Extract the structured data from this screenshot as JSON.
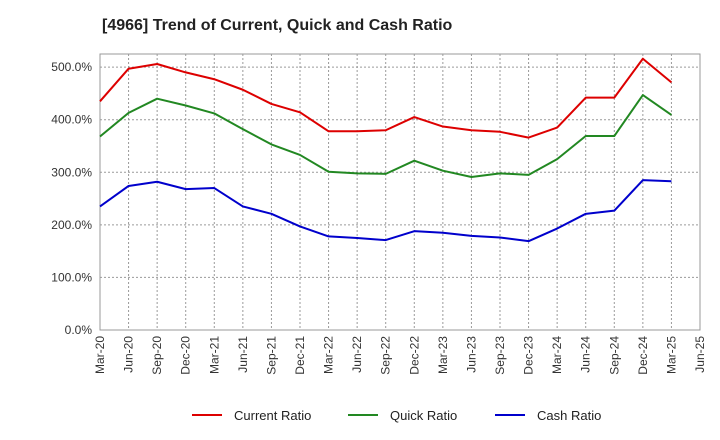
{
  "chart_data": {
    "type": "line",
    "title": "[4966]  Trend of Current, Quick and Cash Ratio",
    "xlabel": "",
    "ylabel": "",
    "ylim": [
      0,
      525
    ],
    "y_ticks": [
      0,
      100,
      200,
      300,
      400,
      500
    ],
    "y_tick_labels": [
      "0.0%",
      "100.0%",
      "200.0%",
      "300.0%",
      "400.0%",
      "500.0%"
    ],
    "grid": true,
    "legend_position": "bottom",
    "x_tick_labels": [
      "Mar-20",
      "Jun-20",
      "Sep-20",
      "Dec-20",
      "Mar-21",
      "Jun-21",
      "Sep-21",
      "Dec-21",
      "Mar-22",
      "Jun-22",
      "Sep-22",
      "Dec-22",
      "Mar-23",
      "Jun-23",
      "Sep-23",
      "Dec-23",
      "Mar-24",
      "Jun-24",
      "Sep-24",
      "Dec-24",
      "Mar-25",
      "Jun-25"
    ],
    "categories": [
      "Mar-20",
      "Jun-20",
      "Sep-20",
      "Dec-20",
      "Mar-21",
      "Jun-21",
      "Sep-21",
      "Dec-21",
      "Mar-22",
      "Jun-22",
      "Sep-22",
      "Dec-22",
      "Mar-23",
      "Jun-23",
      "Sep-23",
      "Dec-23",
      "Mar-24",
      "Jun-24",
      "Sep-24",
      "Dec-24",
      "Mar-25"
    ],
    "series": [
      {
        "name": "Current Ratio",
        "color": "#dd0000",
        "values": [
          435,
          497,
          506,
          490,
          477,
          457,
          430,
          414,
          378,
          378,
          380,
          405,
          387,
          380,
          377,
          366,
          385,
          442,
          442,
          516,
          471
        ]
      },
      {
        "name": "Quick Ratio",
        "color": "#228822",
        "values": [
          368,
          413,
          440,
          427,
          412,
          382,
          353,
          333,
          301,
          298,
          297,
          322,
          303,
          291,
          298,
          295,
          325,
          369,
          369,
          447,
          409
        ]
      },
      {
        "name": "Cash Ratio",
        "color": "#0000cc",
        "values": [
          235,
          274,
          282,
          268,
          270,
          235,
          221,
          197,
          178,
          175,
          171,
          188,
          185,
          179,
          176,
          169,
          193,
          221,
          227,
          285,
          283
        ]
      }
    ]
  }
}
